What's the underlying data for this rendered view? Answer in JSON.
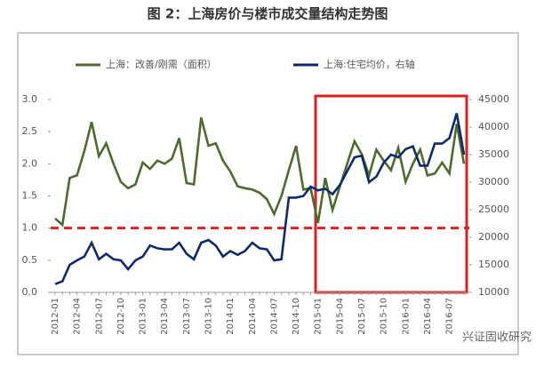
{
  "chart_data": {
    "type": "line",
    "title": "图 2：上海房价与楼市成交量结构走势图",
    "watermark": "兴证固收研究",
    "categories": [
      "2012-01",
      null,
      null,
      "2012-04",
      null,
      null,
      "2012-07",
      null,
      null,
      "2012-10",
      null,
      null,
      "2013-01",
      null,
      null,
      "2013-04",
      null,
      null,
      "2013-07",
      null,
      null,
      "2013-10",
      null,
      null,
      "2014-01",
      null,
      null,
      "2014-04",
      null,
      null,
      "2014-07",
      null,
      null,
      "2014-10",
      null,
      null,
      "2015-01",
      null,
      null,
      "2015-04",
      null,
      null,
      "2015-07",
      null,
      null,
      "2015-10",
      null,
      null,
      "2016-01",
      null,
      null,
      "2016-04",
      null,
      null,
      "2016-07",
      null,
      null
    ],
    "series": [
      {
        "name": "上海：改善/刚需（面积）",
        "color": "#4e6b2e",
        "axis": "y",
        "values": [
          1.15,
          1.05,
          1.78,
          1.82,
          2.2,
          2.65,
          2.12,
          2.32,
          2.0,
          1.72,
          1.62,
          1.68,
          2.02,
          1.92,
          2.05,
          2.0,
          2.08,
          2.4,
          1.7,
          1.68,
          2.72,
          2.28,
          2.32,
          2.05,
          1.88,
          1.65,
          1.62,
          1.6,
          1.55,
          1.45,
          1.22,
          1.5,
          1.9,
          2.28,
          1.6,
          1.62,
          1.08,
          1.78,
          1.28,
          1.65,
          2.0,
          2.35,
          2.15,
          1.82,
          2.22,
          2.05,
          1.9,
          2.25,
          1.72,
          2.0,
          2.22,
          1.82,
          1.85,
          2.02,
          1.85,
          2.62,
          2.0
        ]
      },
      {
        "name": "上海:住宅均价，右轴",
        "color": "#0e2a6e",
        "axis": "y2",
        "values": [
          11500,
          12000,
          15000,
          15800,
          16500,
          19000,
          16000,
          17000,
          16000,
          15800,
          14200,
          15800,
          16500,
          18500,
          18000,
          17800,
          17800,
          19000,
          17000,
          16000,
          19000,
          19500,
          18500,
          16500,
          17500,
          16800,
          17500,
          19000,
          18000,
          17800,
          15800,
          16000,
          27200,
          27200,
          27500,
          29200,
          28500,
          28800,
          27800,
          29500,
          32000,
          34500,
          34800,
          30000,
          31000,
          33500,
          35000,
          34500,
          36000,
          36500,
          33000,
          33000,
          37000,
          37000,
          38000,
          42500,
          35000
        ]
      }
    ],
    "hline": {
      "value": 1.0,
      "color": "#e0201e"
    },
    "ylim": [
      0,
      3
    ],
    "yticks": [
      {
        "value": 0,
        "label": "0.0"
      },
      {
        "value": 0.5,
        "label": "0.5"
      },
      {
        "value": 1,
        "label": "1.0"
      },
      {
        "value": 1.5,
        "label": "1.5"
      },
      {
        "value": 2,
        "label": "2.0"
      },
      {
        "value": 2.5,
        "label": "2.5"
      },
      {
        "value": 3,
        "label": "3.0"
      }
    ],
    "y2lim": [
      10000,
      45000
    ],
    "y2ticks": [
      10000,
      15000,
      20000,
      25000,
      30000,
      35000,
      40000,
      45000
    ],
    "legend": "top"
  }
}
